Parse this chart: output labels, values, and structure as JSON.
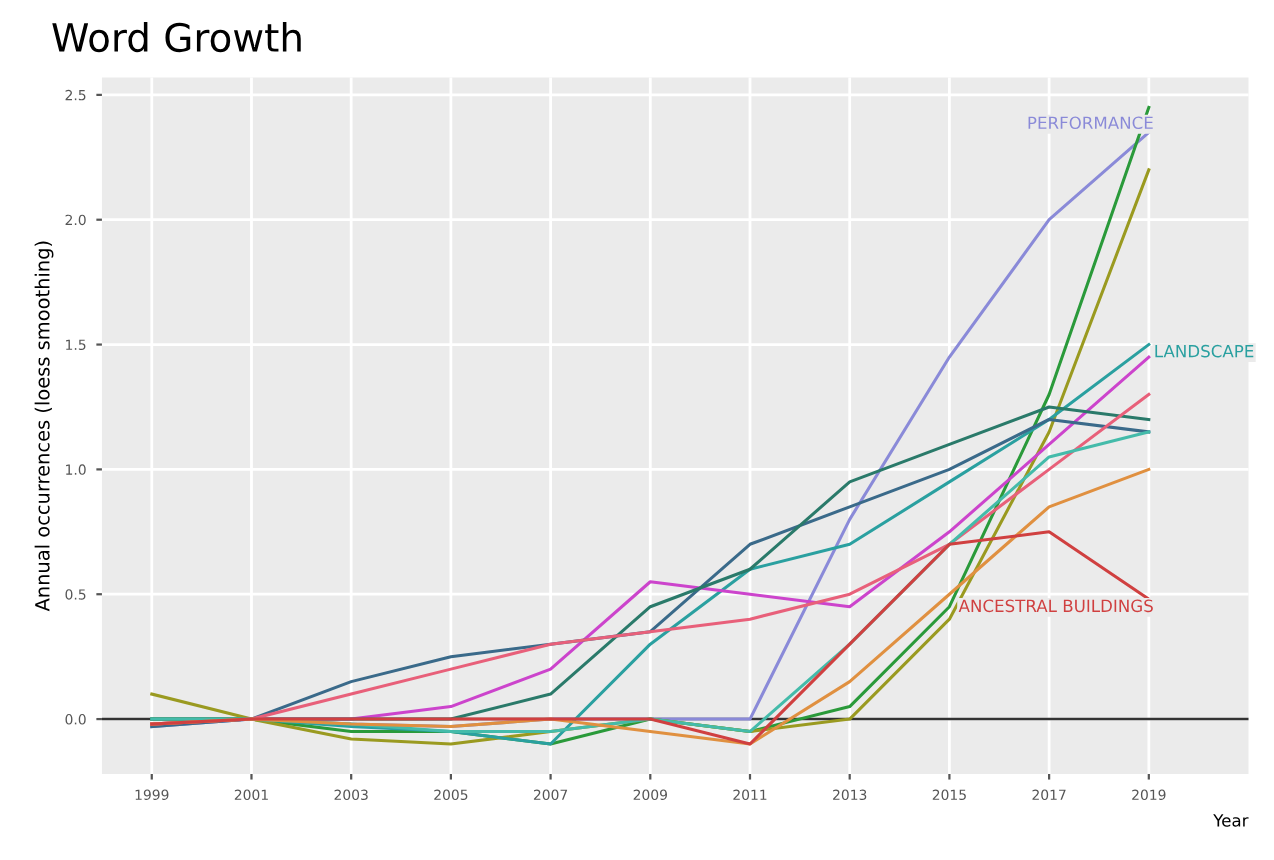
{
  "chart_data": {
    "type": "line",
    "title": "Word Growth",
    "xlabel": "Year",
    "ylabel": "Annual occurrences (loess smoothing)",
    "x": [
      1999,
      2001,
      2003,
      2005,
      2007,
      2009,
      2011,
      2013,
      2015,
      2017,
      2019
    ],
    "xlim": [
      1998,
      2021
    ],
    "xticks": [
      1999,
      2001,
      2003,
      2005,
      2007,
      2009,
      2011,
      2013,
      2015,
      2017,
      2019
    ],
    "ylim": [
      -0.22,
      2.57
    ],
    "yticks": [
      {
        "value": 0,
        "label": "0.0"
      },
      {
        "value": 0.5,
        "label": "0.5"
      },
      {
        "value": 1,
        "label": "1.0"
      },
      {
        "value": 1.5,
        "label": "1.5"
      },
      {
        "value": 2,
        "label": "2.0"
      },
      {
        "value": 2.5,
        "label": "2.5"
      }
    ],
    "grid": true,
    "legend": false,
    "marker": "none",
    "line_style": "solid",
    "ref_lines": [
      {
        "axis": "y",
        "value": 0,
        "color": "#333333"
      }
    ],
    "series": [
      {
        "name": "PERFORMANCE",
        "color": "#8a8ad8",
        "values": [
          -0.03,
          0.0,
          -0.02,
          -0.03,
          0.0,
          0.0,
          0.0,
          0.8,
          1.45,
          2.0,
          2.35
        ]
      },
      {
        "color": "#2a9a3a",
        "values": [
          0.0,
          0.0,
          -0.05,
          -0.05,
          -0.1,
          0.0,
          -0.05,
          0.05,
          0.45,
          1.3,
          2.45
        ]
      },
      {
        "color": "#9a9a20",
        "values": [
          0.1,
          0.0,
          -0.08,
          -0.1,
          -0.05,
          0.0,
          -0.05,
          0.0,
          0.4,
          1.15,
          2.2
        ]
      },
      {
        "name": "LANDSCAPE",
        "color": "#2aa0a0",
        "values": [
          -0.02,
          0.0,
          -0.03,
          -0.05,
          -0.1,
          0.3,
          0.6,
          0.7,
          0.95,
          1.2,
          1.5
        ]
      },
      {
        "color": "#cc44cc",
        "values": [
          -0.02,
          0.0,
          0.0,
          0.05,
          0.2,
          0.55,
          0.5,
          0.45,
          0.75,
          1.1,
          1.45
        ]
      },
      {
        "color": "#3a6a8a",
        "values": [
          -0.03,
          0.0,
          0.15,
          0.25,
          0.3,
          0.35,
          0.7,
          0.85,
          1.0,
          1.2,
          1.15
        ]
      },
      {
        "color": "#2a7a6a",
        "values": [
          0.0,
          0.0,
          0.0,
          0.0,
          0.1,
          0.45,
          0.6,
          0.95,
          1.1,
          1.25,
          1.2
        ]
      },
      {
        "color": "#e8607a",
        "values": [
          -0.02,
          0.0,
          0.1,
          0.2,
          0.3,
          0.35,
          0.4,
          0.5,
          0.7,
          1.0,
          1.3
        ]
      },
      {
        "color": "#44bbaa",
        "values": [
          0.0,
          0.0,
          -0.02,
          -0.05,
          -0.05,
          0.0,
          -0.05,
          0.3,
          0.7,
          1.05,
          1.15
        ]
      },
      {
        "color": "#e09040",
        "values": [
          -0.02,
          0.0,
          -0.02,
          -0.03,
          0.0,
          -0.05,
          -0.1,
          0.15,
          0.5,
          0.85,
          1.0
        ]
      },
      {
        "name": "ANCESTRAL BUILDINGS",
        "color": "#d04040",
        "values": [
          -0.02,
          0.0,
          0.0,
          0.0,
          0.0,
          0.0,
          -0.1,
          0.3,
          0.7,
          0.75,
          0.48
        ]
      }
    ]
  }
}
